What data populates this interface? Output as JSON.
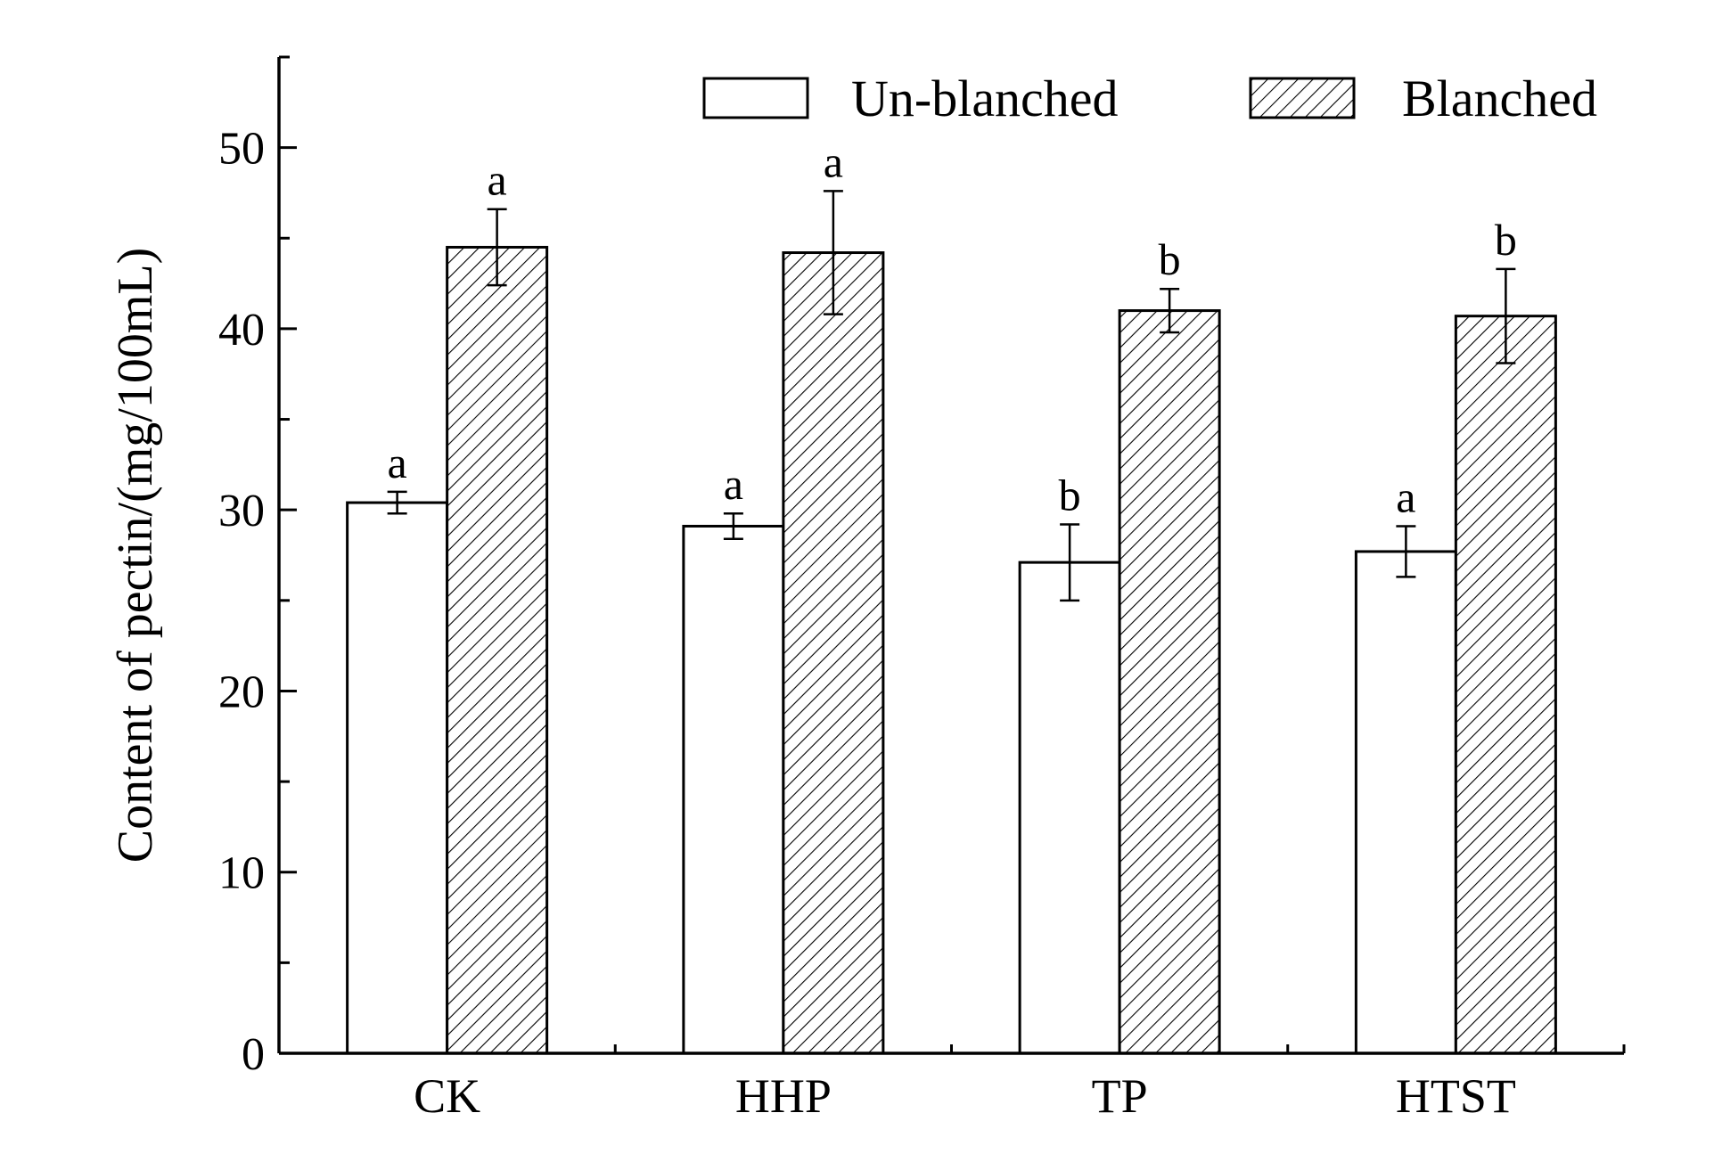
{
  "chart_data": {
    "type": "bar",
    "title": "",
    "xlabel": "",
    "ylabel": "Content of pectin/(mg/100mL)",
    "ylim": [
      0,
      55
    ],
    "yticks": [
      0,
      10,
      20,
      30,
      40,
      50
    ],
    "grid": false,
    "legend_position": "top-right",
    "categories": [
      "CK",
      "HHP",
      "TP",
      "HTST"
    ],
    "series": [
      {
        "name": "Un-blanched",
        "fill": "white",
        "values": [
          30.4,
          29.1,
          27.1,
          27.7
        ],
        "errors": [
          0.6,
          0.7,
          2.1,
          1.4
        ],
        "labels": [
          "a",
          "a",
          "b",
          "a"
        ]
      },
      {
        "name": "Blanched",
        "fill": "hatched",
        "values": [
          44.5,
          44.2,
          41.0,
          40.7
        ],
        "errors": [
          2.1,
          3.4,
          1.2,
          2.6
        ],
        "labels": [
          "a",
          "a",
          "b",
          "b"
        ]
      }
    ]
  }
}
